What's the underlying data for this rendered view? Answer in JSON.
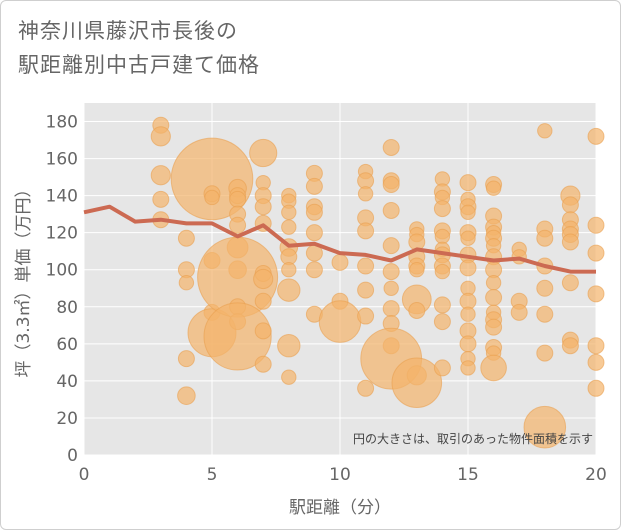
{
  "title": {
    "line1": "神奈川県藤沢市長後の",
    "line2": "駅距離別中古戸建て価格"
  },
  "colors": {
    "bubble": "#f4b36b",
    "bubble_edge": "#e9a050",
    "line": "#cc6a52",
    "plot_bg": "#e6e6e6",
    "grid": "#ffffff",
    "text": "#666666"
  },
  "chart_data": {
    "type": "scatter",
    "title": "神奈川県藤沢市長後の駅距離別中古戸建て価格",
    "xlabel": "駅距離（分）",
    "ylabel": "坪（3.3㎡）単価（万円）",
    "xlim": [
      0,
      20
    ],
    "ylim": [
      0,
      190
    ],
    "xticks": [
      0,
      5,
      10,
      15,
      20
    ],
    "yticks": [
      0,
      20,
      40,
      60,
      80,
      100,
      120,
      140,
      160,
      180
    ],
    "grid": true,
    "annotation": "円の大きさは、取引のあった物件面積を示す",
    "trend_line": {
      "x": [
        0,
        1,
        2,
        3,
        4,
        5,
        6,
        7,
        8,
        9,
        10,
        11,
        12,
        13,
        14,
        15,
        16,
        17,
        18,
        19,
        20
      ],
      "y": [
        131,
        134,
        126,
        127,
        125,
        125,
        118,
        124,
        113,
        114,
        109,
        108,
        105,
        111,
        109,
        107,
        105,
        106,
        102,
        99,
        99
      ]
    },
    "points": [
      {
        "x": 3,
        "y": 178,
        "s": 1
      },
      {
        "x": 3,
        "y": 172,
        "s": 1.2
      },
      {
        "x": 3,
        "y": 151,
        "s": 1.2
      },
      {
        "x": 3,
        "y": 138,
        "s": 1
      },
      {
        "x": 3,
        "y": 127,
        "s": 1
      },
      {
        "x": 4,
        "y": 117,
        "s": 1
      },
      {
        "x": 4,
        "y": 100,
        "s": 1
      },
      {
        "x": 4,
        "y": 93,
        "s": 0.9
      },
      {
        "x": 4,
        "y": 52,
        "s": 1
      },
      {
        "x": 4,
        "y": 32,
        "s": 1.1
      },
      {
        "x": 5,
        "y": 149,
        "s": 5.1
      },
      {
        "x": 5,
        "y": 141,
        "s": 1
      },
      {
        "x": 5,
        "y": 139,
        "s": 0.9
      },
      {
        "x": 5,
        "y": 105,
        "s": 1
      },
      {
        "x": 5,
        "y": 77,
        "s": 1
      },
      {
        "x": 5,
        "y": 66,
        "s": 3
      },
      {
        "x": 6,
        "y": 144,
        "s": 1.1
      },
      {
        "x": 6,
        "y": 140,
        "s": 1
      },
      {
        "x": 6,
        "y": 138,
        "s": 1
      },
      {
        "x": 6,
        "y": 130,
        "s": 1
      },
      {
        "x": 6,
        "y": 124,
        "s": 1
      },
      {
        "x": 6,
        "y": 112,
        "s": 1.3
      },
      {
        "x": 6,
        "y": 100,
        "s": 1.1
      },
      {
        "x": 6,
        "y": 96,
        "s": 5
      },
      {
        "x": 6,
        "y": 80,
        "s": 1
      },
      {
        "x": 6,
        "y": 72,
        "s": 1
      },
      {
        "x": 6,
        "y": 64,
        "s": 4.2
      },
      {
        "x": 7,
        "y": 163,
        "s": 1.7
      },
      {
        "x": 7,
        "y": 147,
        "s": 0.9
      },
      {
        "x": 7,
        "y": 140,
        "s": 1
      },
      {
        "x": 7,
        "y": 134,
        "s": 1
      },
      {
        "x": 7,
        "y": 125,
        "s": 1
      },
      {
        "x": 7,
        "y": 98,
        "s": 1
      },
      {
        "x": 7,
        "y": 95,
        "s": 1.2
      },
      {
        "x": 7,
        "y": 83,
        "s": 1
      },
      {
        "x": 7,
        "y": 67,
        "s": 1
      },
      {
        "x": 7,
        "y": 49,
        "s": 1
      },
      {
        "x": 8,
        "y": 140,
        "s": 0.9
      },
      {
        "x": 8,
        "y": 137,
        "s": 0.9
      },
      {
        "x": 8,
        "y": 131,
        "s": 0.9
      },
      {
        "x": 8,
        "y": 123,
        "s": 0.9
      },
      {
        "x": 8,
        "y": 112,
        "s": 1.1
      },
      {
        "x": 8,
        "y": 107,
        "s": 1
      },
      {
        "x": 8,
        "y": 100,
        "s": 0.9
      },
      {
        "x": 8,
        "y": 89,
        "s": 1.4
      },
      {
        "x": 8,
        "y": 59,
        "s": 1.4
      },
      {
        "x": 8,
        "y": 42,
        "s": 0.9
      },
      {
        "x": 9,
        "y": 152,
        "s": 1
      },
      {
        "x": 9,
        "y": 145,
        "s": 1
      },
      {
        "x": 9,
        "y": 134,
        "s": 1
      },
      {
        "x": 9,
        "y": 131,
        "s": 1
      },
      {
        "x": 9,
        "y": 120,
        "s": 1
      },
      {
        "x": 9,
        "y": 109,
        "s": 1
      },
      {
        "x": 9,
        "y": 100,
        "s": 1
      },
      {
        "x": 9,
        "y": 76,
        "s": 1
      },
      {
        "x": 10,
        "y": 104,
        "s": 1
      },
      {
        "x": 10,
        "y": 83,
        "s": 1
      },
      {
        "x": 10,
        "y": 72,
        "s": 2.6
      },
      {
        "x": 11,
        "y": 153,
        "s": 0.9
      },
      {
        "x": 11,
        "y": 148,
        "s": 1
      },
      {
        "x": 11,
        "y": 141,
        "s": 0.9
      },
      {
        "x": 11,
        "y": 128,
        "s": 1
      },
      {
        "x": 11,
        "y": 121,
        "s": 1
      },
      {
        "x": 11,
        "y": 102,
        "s": 1
      },
      {
        "x": 11,
        "y": 89,
        "s": 1
      },
      {
        "x": 11,
        "y": 75,
        "s": 1
      },
      {
        "x": 11,
        "y": 36,
        "s": 1
      },
      {
        "x": 12,
        "y": 166,
        "s": 1
      },
      {
        "x": 12,
        "y": 148,
        "s": 1
      },
      {
        "x": 12,
        "y": 146,
        "s": 1
      },
      {
        "x": 12,
        "y": 132,
        "s": 1
      },
      {
        "x": 12,
        "y": 113,
        "s": 1
      },
      {
        "x": 12,
        "y": 99,
        "s": 1
      },
      {
        "x": 12,
        "y": 90,
        "s": 0.9
      },
      {
        "x": 12,
        "y": 79,
        "s": 1
      },
      {
        "x": 12,
        "y": 71,
        "s": 1
      },
      {
        "x": 12,
        "y": 59,
        "s": 1
      },
      {
        "x": 12,
        "y": 52,
        "s": 3.8
      },
      {
        "x": 13,
        "y": 122,
        "s": 0.9
      },
      {
        "x": 13,
        "y": 119,
        "s": 0.9
      },
      {
        "x": 13,
        "y": 115,
        "s": 1
      },
      {
        "x": 13,
        "y": 107,
        "s": 1
      },
      {
        "x": 13,
        "y": 102,
        "s": 1
      },
      {
        "x": 13,
        "y": 100,
        "s": 0.9
      },
      {
        "x": 13,
        "y": 84,
        "s": 1.8
      },
      {
        "x": 13,
        "y": 78,
        "s": 1
      },
      {
        "x": 13,
        "y": 43,
        "s": 1.2
      },
      {
        "x": 13,
        "y": 39,
        "s": 3.1
      },
      {
        "x": 14,
        "y": 149,
        "s": 0.9
      },
      {
        "x": 14,
        "y": 142,
        "s": 1
      },
      {
        "x": 14,
        "y": 139,
        "s": 0.9
      },
      {
        "x": 14,
        "y": 133,
        "s": 1
      },
      {
        "x": 14,
        "y": 121,
        "s": 1
      },
      {
        "x": 14,
        "y": 118,
        "s": 0.9
      },
      {
        "x": 14,
        "y": 111,
        "s": 0.9
      },
      {
        "x": 14,
        "y": 108,
        "s": 1
      },
      {
        "x": 14,
        "y": 102,
        "s": 1
      },
      {
        "x": 14,
        "y": 99,
        "s": 0.9
      },
      {
        "x": 14,
        "y": 81,
        "s": 1
      },
      {
        "x": 14,
        "y": 72,
        "s": 1
      },
      {
        "x": 14,
        "y": 47,
        "s": 1
      },
      {
        "x": 15,
        "y": 147,
        "s": 1
      },
      {
        "x": 15,
        "y": 138,
        "s": 0.9
      },
      {
        "x": 15,
        "y": 134,
        "s": 1
      },
      {
        "x": 15,
        "y": 131,
        "s": 0.9
      },
      {
        "x": 15,
        "y": 120,
        "s": 1
      },
      {
        "x": 15,
        "y": 117,
        "s": 0.9
      },
      {
        "x": 15,
        "y": 108,
        "s": 1
      },
      {
        "x": 15,
        "y": 101,
        "s": 1
      },
      {
        "x": 15,
        "y": 90,
        "s": 0.9
      },
      {
        "x": 15,
        "y": 83,
        "s": 1
      },
      {
        "x": 15,
        "y": 76,
        "s": 0.9
      },
      {
        "x": 15,
        "y": 67,
        "s": 1
      },
      {
        "x": 15,
        "y": 60,
        "s": 1
      },
      {
        "x": 15,
        "y": 52,
        "s": 0.9
      },
      {
        "x": 15,
        "y": 47,
        "s": 0.9
      },
      {
        "x": 16,
        "y": 146,
        "s": 1
      },
      {
        "x": 16,
        "y": 144,
        "s": 0.9
      },
      {
        "x": 16,
        "y": 129,
        "s": 1
      },
      {
        "x": 16,
        "y": 123,
        "s": 1
      },
      {
        "x": 16,
        "y": 120,
        "s": 0.9
      },
      {
        "x": 16,
        "y": 117,
        "s": 1
      },
      {
        "x": 16,
        "y": 113,
        "s": 0.9
      },
      {
        "x": 16,
        "y": 107,
        "s": 1
      },
      {
        "x": 16,
        "y": 100,
        "s": 1
      },
      {
        "x": 16,
        "y": 93,
        "s": 0.9
      },
      {
        "x": 16,
        "y": 85,
        "s": 1
      },
      {
        "x": 16,
        "y": 77,
        "s": 0.9
      },
      {
        "x": 16,
        "y": 73,
        "s": 1
      },
      {
        "x": 16,
        "y": 69,
        "s": 1
      },
      {
        "x": 16,
        "y": 58,
        "s": 1
      },
      {
        "x": 16,
        "y": 55,
        "s": 0.9
      },
      {
        "x": 16,
        "y": 47,
        "s": 1.6
      },
      {
        "x": 17,
        "y": 111,
        "s": 0.9
      },
      {
        "x": 17,
        "y": 107,
        "s": 0.9
      },
      {
        "x": 17,
        "y": 83,
        "s": 1
      },
      {
        "x": 17,
        "y": 77,
        "s": 1
      },
      {
        "x": 18,
        "y": 175,
        "s": 0.9
      },
      {
        "x": 18,
        "y": 122,
        "s": 1
      },
      {
        "x": 18,
        "y": 117,
        "s": 1
      },
      {
        "x": 18,
        "y": 102,
        "s": 1
      },
      {
        "x": 18,
        "y": 90,
        "s": 1
      },
      {
        "x": 18,
        "y": 76,
        "s": 1
      },
      {
        "x": 18,
        "y": 55,
        "s": 1
      },
      {
        "x": 18,
        "y": 15,
        "s": 2.6
      },
      {
        "x": 19,
        "y": 140,
        "s": 1.2
      },
      {
        "x": 19,
        "y": 135,
        "s": 1
      },
      {
        "x": 19,
        "y": 127,
        "s": 1
      },
      {
        "x": 19,
        "y": 122,
        "s": 1
      },
      {
        "x": 19,
        "y": 119,
        "s": 1
      },
      {
        "x": 19,
        "y": 115,
        "s": 1
      },
      {
        "x": 19,
        "y": 93,
        "s": 1
      },
      {
        "x": 19,
        "y": 62,
        "s": 1
      },
      {
        "x": 19,
        "y": 59,
        "s": 1
      },
      {
        "x": 20,
        "y": 172,
        "s": 1
      },
      {
        "x": 20,
        "y": 124,
        "s": 1
      },
      {
        "x": 20,
        "y": 109,
        "s": 1
      },
      {
        "x": 20,
        "y": 87,
        "s": 1
      },
      {
        "x": 20,
        "y": 59,
        "s": 1
      },
      {
        "x": 20,
        "y": 50,
        "s": 1
      },
      {
        "x": 20,
        "y": 36,
        "s": 1
      }
    ]
  }
}
